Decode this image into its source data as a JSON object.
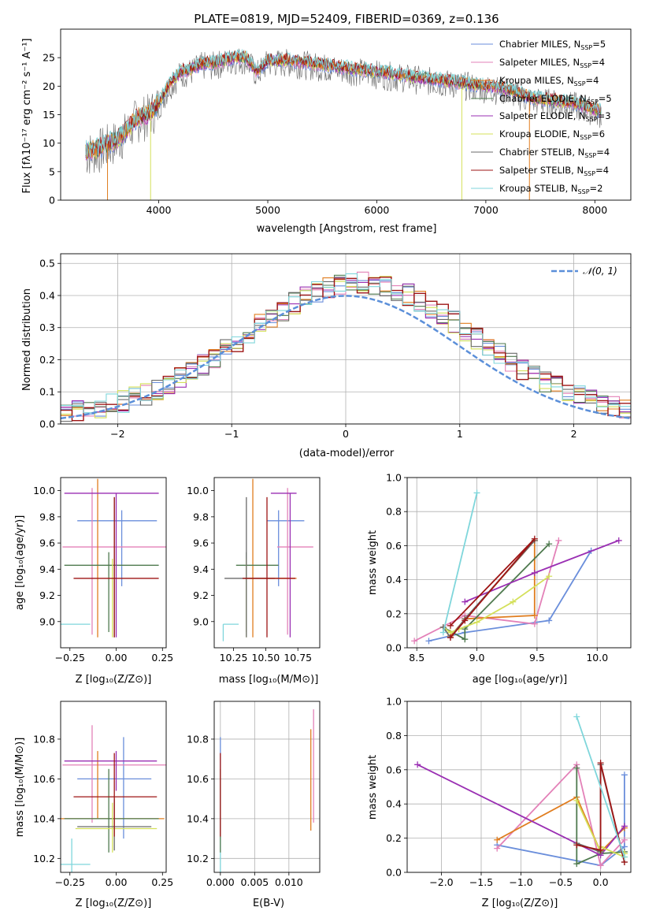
{
  "colors": {
    "Chabrier MILES": "#6a8edb",
    "Salpeter MILES": "#e381b8",
    "Kroupa MILES": "#e07d1f",
    "Chabrier ELODIE": "#4f7a4f",
    "Salpeter ELODIE": "#9a2fb3",
    "Kroupa ELODIE": "#d4e05a",
    "Chabrier STELIB": "#6a6a6a",
    "Salpeter STELIB": "#9e1515",
    "Kroupa STELIB": "#7fd6db",
    "normal": "#5b8fd9"
  },
  "chart_data": [
    {
      "id": "spectrum",
      "type": "line",
      "title": "PLATE=0819, MJD=52409, FIBERID=0369, z=0.136",
      "xlabel": "wavelength [Angstrom, rest frame]",
      "ylabel": "Flux [fλ10⁻¹⁷ erg cm⁻² s⁻¹ A⁻¹]",
      "xlim": [
        3100,
        8330
      ],
      "ylim": [
        0,
        30
      ],
      "xticks": [
        4000,
        5000,
        6000,
        7000,
        8000
      ],
      "yticks": [
        0,
        5,
        10,
        15,
        20,
        25
      ],
      "envelope": {
        "x": [
          3330,
          3450,
          3600,
          3700,
          3800,
          3900,
          4000,
          4100,
          4200,
          4300,
          4400,
          4500,
          4600,
          4700,
          4800,
          4900,
          5000,
          5200,
          5400,
          5600,
          5800,
          6000,
          6200,
          6400,
          6600,
          6800,
          7000,
          7200,
          7400,
          7600,
          7800,
          8000,
          8060
        ],
        "y": [
          8.5,
          9.0,
          10.5,
          12.0,
          14.5,
          15.0,
          17.0,
          20.5,
          22.5,
          23.0,
          24.0,
          24.0,
          24.5,
          25.0,
          25.0,
          22.5,
          24.5,
          24.5,
          24.0,
          23.5,
          23.0,
          22.5,
          22.0,
          21.5,
          21.0,
          20.5,
          20.0,
          19.5,
          18.0,
          17.5,
          17.0,
          16.0,
          15.5
        ]
      },
      "legend_position": "upper right",
      "legend": [
        "Chabrier MILES, N_SSP=5",
        "Salpeter MILES, N_SSP=4",
        "Kroupa MILES, N_SSP=4",
        "Chabrier ELODIE, N_SSP=5",
        "Salpeter ELODIE, N_SSP=3",
        "Kroupa ELODIE, N_SSP=6",
        "Chabrier STELIB, N_SSP=4",
        "Salpeter STELIB, N_SSP=4",
        "Kroupa STELIB, N_SSP=2"
      ],
      "legend_main": [
        "Chabrier MILES, N",
        "Salpeter MILES, N",
        "Kroupa MILES, N",
        "Chabrier ELODIE, N",
        "Salpeter ELODIE, N",
        "Kroupa ELODIE, N",
        "Chabrier STELIB, N",
        "Salpeter STELIB, N",
        "Kroupa STELIB, N"
      ],
      "legend_sub": "SSP",
      "legend_tail": [
        "=5",
        "=4",
        "=4",
        "=5",
        "=3",
        "=6",
        "=4",
        "=4",
        "=2"
      ]
    },
    {
      "id": "residuals",
      "type": "line",
      "xlabel": "(data-model)/error",
      "ylabel": "Normed distribution",
      "xlim": [
        -2.5,
        2.5
      ],
      "ylim": [
        0,
        0.53
      ],
      "xticks": [
        -2,
        -1,
        0,
        1,
        2
      ],
      "yticks": [
        0.0,
        0.1,
        0.2,
        0.3,
        0.4,
        0.5
      ],
      "grid": true,
      "legend": "𝒩(0, 1)",
      "legend_position": "upper right",
      "model": "normal(0,1)"
    },
    {
      "id": "age-vs-Z",
      "type": "scatter",
      "xlabel": "Z [log₁₀(Z/Z⊙)]",
      "ylabel": "age  [log₁₀(age/yr)]",
      "xlim": [
        -0.3,
        0.27
      ],
      "ylim": [
        8.8,
        10.1
      ],
      "xticks": [
        -0.25,
        0.0,
        0.25
      ],
      "yticks": [
        9.0,
        9.2,
        9.4,
        9.6,
        9.8,
        10.0
      ],
      "points": [
        {
          "model": "Chabrier MILES",
          "x": 0.03,
          "xerr": [
            0.24,
            0.19
          ],
          "y": 9.77,
          "yerr": [
            0.5,
            0.08
          ]
        },
        {
          "model": "Salpeter MILES",
          "x": -0.13,
          "xerr": [
            0.16,
            0.4
          ],
          "y": 9.57,
          "yerr": [
            0.67,
            0.45
          ]
        },
        {
          "model": "Kroupa MILES",
          "x": -0.1,
          "xerr": [
            0.0,
            0.0
          ],
          "y": 9.33,
          "yerr": [
            0.45,
            0.76
          ]
        },
        {
          "model": "Chabrier ELODIE",
          "x": -0.04,
          "xerr": [
            0.24,
            0.27
          ],
          "y": 9.43,
          "yerr": [
            0.51,
            0.1
          ]
        },
        {
          "model": "Salpeter ELODIE",
          "x": 0.0,
          "xerr": [
            0.28,
            0.23
          ],
          "y": 9.98,
          "yerr": [
            1.1,
            0.0
          ]
        },
        {
          "model": "Kroupa ELODIE",
          "x": -0.02,
          "xerr": [
            0.0,
            0.0
          ],
          "y": 9.33,
          "yerr": [
            0.45,
            0.15
          ]
        },
        {
          "model": "Chabrier STELIB",
          "x": -0.01,
          "xerr": [
            0.0,
            0.0
          ],
          "y": 9.33,
          "yerr": [
            0.45,
            0.62
          ]
        },
        {
          "model": "Salpeter STELIB",
          "x": -0.01,
          "xerr": [
            0.22,
            0.24
          ],
          "y": 9.33,
          "yerr": [
            0.45,
            0.62
          ]
        },
        {
          "model": "Kroupa STELIB",
          "x": -0.24,
          "xerr": [
            0.07,
            0.1
          ],
          "y": 8.98,
          "yerr": [
            0.0,
            0.0
          ]
        }
      ]
    },
    {
      "id": "age-vs-mass",
      "type": "scatter",
      "xlabel": "mass [log₁₀(M/M⊙)]",
      "ylabel": "",
      "xlim": [
        10.1,
        10.92
      ],
      "ylim": [
        8.8,
        10.1
      ],
      "xticks": [
        10.25,
        10.5,
        10.75
      ],
      "yticks": [
        9.0,
        9.2,
        9.4,
        9.6,
        9.8,
        10.0
      ],
      "points": [
        {
          "model": "Chabrier MILES",
          "x": 10.6,
          "xerr": [
            0.09,
            0.2
          ],
          "y": 9.77,
          "yerr": [
            0.5,
            0.08
          ]
        },
        {
          "model": "Salpeter MILES",
          "x": 10.67,
          "xerr": [
            0.08,
            0.2
          ],
          "y": 9.57,
          "yerr": [
            0.67,
            0.45
          ]
        },
        {
          "model": "Kroupa MILES",
          "x": 10.4,
          "xerr": [
            0.06,
            0.34
          ],
          "y": 9.33,
          "yerr": [
            0.45,
            0.76
          ]
        },
        {
          "model": "Chabrier ELODIE",
          "x": 10.35,
          "xerr": [
            0.08,
            0.25
          ],
          "y": 9.43,
          "yerr": [
            0.51,
            0.1
          ]
        },
        {
          "model": "Salpeter ELODIE",
          "x": 10.69,
          "xerr": [
            0.15,
            0.05
          ],
          "y": 9.98,
          "yerr": [
            1.1,
            0.0
          ]
        },
        {
          "model": "Kroupa ELODIE",
          "x": 10.35,
          "xerr": [
            0.0,
            0.0
          ],
          "y": 9.33,
          "yerr": [
            0.45,
            0.15
          ]
        },
        {
          "model": "Chabrier STELIB",
          "x": 10.35,
          "xerr": [
            0.17,
            0.22
          ],
          "y": 9.33,
          "yerr": [
            0.45,
            0.62
          ]
        },
        {
          "model": "Salpeter STELIB",
          "x": 10.51,
          "xerr": [
            0.19,
            0.22
          ],
          "y": 9.33,
          "yerr": [
            0.45,
            0.62
          ]
        },
        {
          "model": "Kroupa STELIB",
          "x": 10.17,
          "xerr": [
            0.0,
            0.12
          ],
          "y": 8.98,
          "yerr": [
            0.13,
            0.0
          ]
        }
      ]
    },
    {
      "id": "weight-vs-age",
      "type": "line",
      "xlabel": "age  [log₁₀(age/yr)]",
      "ylabel": "mass weight",
      "xlim": [
        8.42,
        10.28
      ],
      "ylim": [
        0.0,
        1.0
      ],
      "xticks": [
        8.5,
        9.0,
        9.5,
        10.0
      ],
      "yticks": [
        0.0,
        0.2,
        0.4,
        0.6,
        0.8,
        1.0
      ],
      "grid": true,
      "series": [
        {
          "model": "Chabrier MILES",
          "x": [
            8.6,
            8.9,
            9.6,
            9.95
          ],
          "y": [
            0.04,
            0.09,
            0.16,
            0.57
          ]
        },
        {
          "model": "Salpeter MILES",
          "x": [
            8.48,
            8.9,
            9.48,
            9.68
          ],
          "y": [
            0.04,
            0.19,
            0.14,
            0.63
          ]
        },
        {
          "model": "Kroupa MILES",
          "x": [
            8.78,
            9.48,
            9.48,
            8.9
          ],
          "y": [
            0.07,
            0.63,
            0.19,
            0.17
          ]
        },
        {
          "model": "Chabrier ELODIE",
          "x": [
            8.72,
            8.9,
            8.9,
            9.6
          ],
          "y": [
            0.12,
            0.05,
            0.11,
            0.61
          ]
        },
        {
          "model": "Salpeter ELODIE",
          "x": [
            8.9,
            9.48,
            10.18
          ],
          "y": [
            0.27,
            0.44,
            0.63
          ]
        },
        {
          "model": "Kroupa ELODIE",
          "x": [
            8.72,
            8.78,
            8.85,
            9.0,
            9.3,
            9.6
          ],
          "y": [
            0.12,
            0.09,
            0.11,
            0.15,
            0.27,
            0.42
          ]
        },
        {
          "model": "Chabrier STELIB",
          "x": [
            8.72,
            8.78,
            8.9,
            9.48
          ],
          "y": [
            0.12,
            0.06,
            0.17,
            0.63
          ]
        },
        {
          "model": "Salpeter STELIB",
          "x": [
            8.78,
            8.9,
            9.48,
            8.78
          ],
          "y": [
            0.06,
            0.16,
            0.64,
            0.13
          ]
        },
        {
          "model": "Kroupa STELIB",
          "x": [
            8.72,
            9.0
          ],
          "y": [
            0.09,
            0.91
          ]
        }
      ]
    },
    {
      "id": "mass-vs-Z",
      "type": "scatter",
      "xlabel": "Z [log₁₀(Z/Z⊙)]",
      "ylabel": "mass [log₁₀(M/M⊙)]",
      "xlim": [
        -0.3,
        0.27
      ],
      "ylim": [
        10.13,
        10.99
      ],
      "xticks": [
        -0.25,
        0.0,
        0.25
      ],
      "yticks": [
        10.2,
        10.4,
        10.6,
        10.8
      ],
      "points": [
        {
          "model": "Chabrier MILES",
          "x": 0.04,
          "xerr": [
            0.25,
            0.15
          ],
          "y": 10.6,
          "yerr": [
            0.3,
            0.21
          ]
        },
        {
          "model": "Salpeter MILES",
          "x": -0.13,
          "xerr": [
            0.16,
            0.4
          ],
          "y": 10.67,
          "yerr": [
            0.29,
            0.2
          ]
        },
        {
          "model": "Kroupa MILES",
          "x": -0.1,
          "xerr": [
            0.24,
            0.36
          ],
          "y": 10.4,
          "yerr": [
            0.0,
            0.34
          ]
        },
        {
          "model": "Chabrier ELODIE",
          "x": -0.04,
          "xerr": [
            0.24,
            0.27
          ],
          "y": 10.4,
          "yerr": [
            0.17,
            0.25
          ]
        },
        {
          "model": "Salpeter ELODIE",
          "x": 0.0,
          "xerr": [
            0.28,
            0.22
          ],
          "y": 10.69,
          "yerr": [
            0.15,
            0.05
          ]
        },
        {
          "model": "Kroupa ELODIE",
          "x": -0.02,
          "xerr": [
            0.2,
            0.24
          ],
          "y": 10.35,
          "yerr": [
            0.12,
            0.13
          ]
        },
        {
          "model": "Chabrier STELIB",
          "x": -0.01,
          "xerr": [
            0.2,
            0.2
          ],
          "y": 10.36,
          "yerr": [
            0.12,
            0.14
          ]
        },
        {
          "model": "Salpeter STELIB",
          "x": -0.01,
          "xerr": [
            0.22,
            0.23
          ],
          "y": 10.51,
          "yerr": [
            0.2,
            0.22
          ]
        },
        {
          "model": "Kroupa STELIB",
          "x": -0.24,
          "xerr": [
            0.07,
            0.1
          ],
          "y": 10.17,
          "yerr": [
            0.06,
            0.13
          ]
        }
      ]
    },
    {
      "id": "mass-vs-EBV",
      "type": "scatter",
      "xlabel": "E(B-V)",
      "ylabel": "",
      "xlim": [
        -0.0009,
        0.0145
      ],
      "ylim": [
        10.13,
        10.99
      ],
      "xticks": [
        0.0,
        0.005,
        0.01
      ],
      "yticks": [
        10.2,
        10.4,
        10.6,
        10.8
      ],
      "grid": true,
      "points": [
        {
          "model": "Chabrier MILES",
          "x": 0.0,
          "y": 10.6,
          "yerr": [
            0.3,
            0.21
          ]
        },
        {
          "model": "Kroupa STELIB",
          "x": 0.0,
          "y": 10.17,
          "yerr": [
            0.06,
            0.13
          ]
        },
        {
          "model": "Chabrier ELODIE",
          "x": 0.0,
          "y": 10.4,
          "yerr": [
            0.17,
            0.25
          ]
        },
        {
          "model": "Salpeter STELIB",
          "x": 0.0,
          "y": 10.51,
          "yerr": [
            0.2,
            0.22
          ]
        },
        {
          "model": "Kroupa MILES",
          "x": 0.0132,
          "y": 10.6,
          "yerr": [
            0.26,
            0.25
          ]
        },
        {
          "model": "Salpeter MILES",
          "x": 0.0136,
          "y": 10.67,
          "yerr": [
            0.29,
            0.28
          ]
        }
      ]
    },
    {
      "id": "weight-vs-Z",
      "type": "line",
      "xlabel": "Z [log₁₀(Z/Z⊙)]",
      "ylabel": "mass weight",
      "xlim": [
        -2.43,
        0.38
      ],
      "ylim": [
        0.0,
        1.0
      ],
      "xticks": [
        -2.0,
        -1.5,
        -1.0,
        -0.5,
        0.0
      ],
      "yticks": [
        0.0,
        0.2,
        0.4,
        0.6,
        0.8,
        1.0
      ],
      "grid": true,
      "series": [
        {
          "model": "Chabrier MILES",
          "x": [
            -1.3,
            0.0,
            0.3,
            0.3
          ],
          "y": [
            0.16,
            0.04,
            0.15,
            0.57
          ]
        },
        {
          "model": "Salpeter MILES",
          "x": [
            -1.3,
            -0.3,
            0.0,
            0.3
          ],
          "y": [
            0.14,
            0.63,
            0.04,
            0.19
          ]
        },
        {
          "model": "Kroupa MILES",
          "x": [
            -1.3,
            -0.3,
            0.0,
            0.3
          ],
          "y": [
            0.19,
            0.44,
            0.12,
            0.26
          ]
        },
        {
          "model": "Chabrier ELODIE",
          "x": [
            -0.3,
            -0.3,
            0.0,
            0.3
          ],
          "y": [
            0.61,
            0.05,
            0.11,
            0.12
          ]
        },
        {
          "model": "Salpeter ELODIE",
          "x": [
            -2.3,
            0.0,
            0.3
          ],
          "y": [
            0.63,
            0.1,
            0.27
          ]
        },
        {
          "model": "Kroupa ELODIE",
          "x": [
            -0.3,
            0.0,
            0.0,
            0.3,
            0.3,
            0.3
          ],
          "y": [
            0.42,
            0.12,
            0.15,
            0.09,
            0.11,
            0.11
          ]
        },
        {
          "model": "Chabrier STELIB",
          "x": [
            -0.3,
            0.0,
            0.0,
            0.3
          ],
          "y": [
            0.17,
            0.12,
            0.63,
            0.06
          ]
        },
        {
          "model": "Salpeter STELIB",
          "x": [
            -0.3,
            0.0,
            0.0,
            0.3
          ],
          "y": [
            0.16,
            0.13,
            0.64,
            0.06
          ]
        },
        {
          "model": "Kroupa STELIB",
          "x": [
            -0.3,
            0.3
          ],
          "y": [
            0.91,
            0.09
          ]
        }
      ]
    }
  ]
}
